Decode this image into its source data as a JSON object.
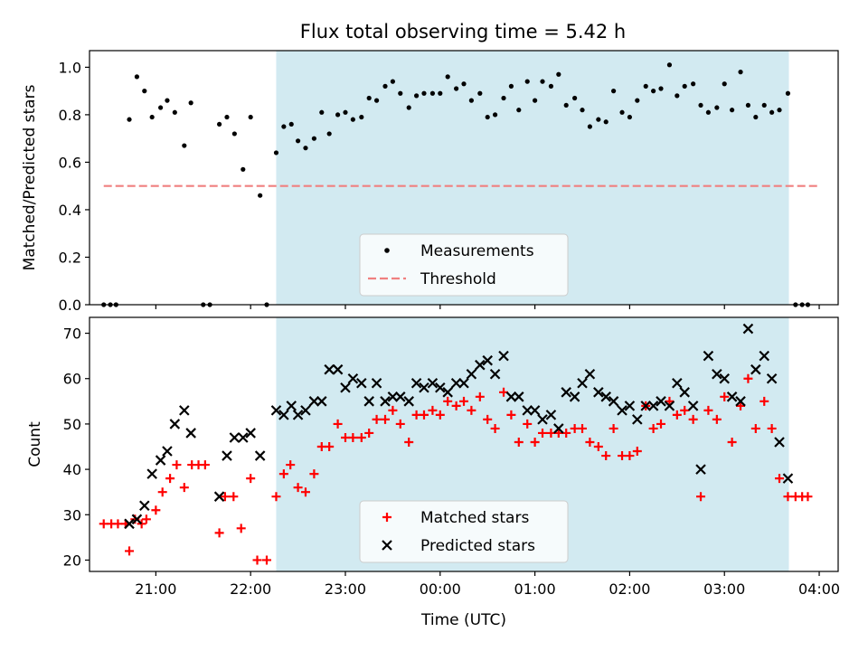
{
  "figure": {
    "title": "Flux total observing time = 5.42 h"
  },
  "chart_data": [
    {
      "type": "scatter",
      "ylabel": "Matched/Predicted stars",
      "xlim_hours": [
        20.3,
        28.2
      ],
      "ylim": [
        0,
        1.07
      ],
      "yticks": [
        0.0,
        0.2,
        0.4,
        0.6,
        0.8,
        1.0
      ],
      "ytick_labels": [
        "0.0",
        "0.2",
        "0.4",
        "0.6",
        "0.8",
        "1.0"
      ],
      "shaded_span_hours": [
        22.27,
        27.68
      ],
      "shade_color": "#add8e6",
      "legend_position": "lower center",
      "threshold": {
        "name": "Threshold",
        "y": 0.5,
        "x_range_hours": [
          20.45,
          28.0
        ],
        "color": "#f08080"
      },
      "series": [
        {
          "name": "Measurements",
          "color": "#000000",
          "points": [
            [
              20.45,
              0.0
            ],
            [
              20.52,
              0.0
            ],
            [
              20.58,
              0.0
            ],
            [
              20.72,
              0.78
            ],
            [
              20.8,
              0.96
            ],
            [
              20.88,
              0.9
            ],
            [
              20.96,
              0.79
            ],
            [
              21.05,
              0.83
            ],
            [
              21.12,
              0.86
            ],
            [
              21.2,
              0.81
            ],
            [
              21.3,
              0.67
            ],
            [
              21.37,
              0.85
            ],
            [
              21.5,
              0.0
            ],
            [
              21.57,
              0.0
            ],
            [
              21.67,
              0.76
            ],
            [
              21.75,
              0.79
            ],
            [
              21.83,
              0.72
            ],
            [
              21.92,
              0.57
            ],
            [
              22.0,
              0.79
            ],
            [
              22.1,
              0.46
            ],
            [
              22.17,
              0.0
            ],
            [
              22.27,
              0.64
            ],
            [
              22.35,
              0.75
            ],
            [
              22.43,
              0.76
            ],
            [
              22.5,
              0.69
            ],
            [
              22.58,
              0.66
            ],
            [
              22.67,
              0.7
            ],
            [
              22.75,
              0.81
            ],
            [
              22.83,
              0.72
            ],
            [
              22.92,
              0.8
            ],
            [
              23.0,
              0.81
            ],
            [
              23.08,
              0.78
            ],
            [
              23.17,
              0.79
            ],
            [
              23.25,
              0.87
            ],
            [
              23.33,
              0.86
            ],
            [
              23.42,
              0.92
            ],
            [
              23.5,
              0.94
            ],
            [
              23.58,
              0.89
            ],
            [
              23.67,
              0.83
            ],
            [
              23.75,
              0.88
            ],
            [
              23.83,
              0.89
            ],
            [
              23.92,
              0.89
            ],
            [
              24.0,
              0.89
            ],
            [
              24.08,
              0.96
            ],
            [
              24.17,
              0.91
            ],
            [
              24.25,
              0.93
            ],
            [
              24.33,
              0.86
            ],
            [
              24.42,
              0.89
            ],
            [
              24.5,
              0.79
            ],
            [
              24.58,
              0.8
            ],
            [
              24.67,
              0.87
            ],
            [
              24.75,
              0.92
            ],
            [
              24.83,
              0.82
            ],
            [
              24.92,
              0.94
            ],
            [
              25.0,
              0.86
            ],
            [
              25.08,
              0.94
            ],
            [
              25.17,
              0.92
            ],
            [
              25.25,
              0.97
            ],
            [
              25.33,
              0.84
            ],
            [
              25.42,
              0.87
            ],
            [
              25.5,
              0.82
            ],
            [
              25.58,
              0.75
            ],
            [
              25.67,
              0.78
            ],
            [
              25.75,
              0.77
            ],
            [
              25.83,
              0.9
            ],
            [
              25.92,
              0.81
            ],
            [
              26.0,
              0.79
            ],
            [
              26.08,
              0.86
            ],
            [
              26.17,
              0.92
            ],
            [
              26.25,
              0.9
            ],
            [
              26.33,
              0.91
            ],
            [
              26.42,
              1.01
            ],
            [
              26.5,
              0.88
            ],
            [
              26.58,
              0.92
            ],
            [
              26.67,
              0.93
            ],
            [
              26.75,
              0.84
            ],
            [
              26.83,
              0.81
            ],
            [
              26.92,
              0.83
            ],
            [
              27.0,
              0.93
            ],
            [
              27.08,
              0.82
            ],
            [
              27.17,
              0.98
            ],
            [
              27.25,
              0.84
            ],
            [
              27.33,
              0.79
            ],
            [
              27.42,
              0.84
            ],
            [
              27.5,
              0.81
            ],
            [
              27.58,
              0.82
            ],
            [
              27.67,
              0.89
            ],
            [
              27.75,
              0.0
            ],
            [
              27.82,
              0.0
            ],
            [
              27.88,
              0.0
            ]
          ]
        }
      ]
    },
    {
      "type": "scatter",
      "ylabel": "Count",
      "xlabel": "Time (UTC)",
      "xlim_hours": [
        20.3,
        28.2
      ],
      "ylim": [
        17.5,
        73.5
      ],
      "yticks": [
        20,
        30,
        40,
        50,
        60,
        70
      ],
      "ytick_labels": [
        "20",
        "30",
        "40",
        "50",
        "60",
        "70"
      ],
      "xticks_hours": [
        21,
        22,
        23,
        24,
        25,
        26,
        27,
        28
      ],
      "xtick_labels": [
        "21:00",
        "22:00",
        "23:00",
        "00:00",
        "01:00",
        "02:00",
        "03:00",
        "04:00"
      ],
      "shaded_span_hours": [
        22.27,
        27.68
      ],
      "shade_color": "#add8e6",
      "legend_position": "lower center",
      "series": [
        {
          "name": "Matched stars",
          "marker": "plus",
          "color": "#ff0000",
          "points": [
            [
              20.45,
              28
            ],
            [
              20.53,
              28
            ],
            [
              20.6,
              28
            ],
            [
              20.68,
              28
            ],
            [
              20.72,
              22
            ],
            [
              20.78,
              29
            ],
            [
              20.85,
              28
            ],
            [
              20.9,
              29
            ],
            [
              21.0,
              31
            ],
            [
              21.07,
              35
            ],
            [
              21.15,
              38
            ],
            [
              21.22,
              41
            ],
            [
              21.3,
              36
            ],
            [
              21.38,
              41
            ],
            [
              21.45,
              41
            ],
            [
              21.52,
              41
            ],
            [
              21.67,
              26
            ],
            [
              21.73,
              34
            ],
            [
              21.82,
              34
            ],
            [
              21.9,
              27
            ],
            [
              22.0,
              38
            ],
            [
              22.07,
              20
            ],
            [
              22.17,
              20
            ],
            [
              22.27,
              34
            ],
            [
              22.35,
              39
            ],
            [
              22.42,
              41
            ],
            [
              22.5,
              36
            ],
            [
              22.58,
              35
            ],
            [
              22.67,
              39
            ],
            [
              22.75,
              45
            ],
            [
              22.83,
              45
            ],
            [
              22.92,
              50
            ],
            [
              23.0,
              47
            ],
            [
              23.08,
              47
            ],
            [
              23.17,
              47
            ],
            [
              23.25,
              48
            ],
            [
              23.33,
              51
            ],
            [
              23.42,
              51
            ],
            [
              23.5,
              53
            ],
            [
              23.58,
              50
            ],
            [
              23.67,
              46
            ],
            [
              23.75,
              52
            ],
            [
              23.83,
              52
            ],
            [
              23.92,
              53
            ],
            [
              24.0,
              52
            ],
            [
              24.08,
              55
            ],
            [
              24.17,
              54
            ],
            [
              24.25,
              55
            ],
            [
              24.33,
              53
            ],
            [
              24.42,
              56
            ],
            [
              24.5,
              51
            ],
            [
              24.58,
              49
            ],
            [
              24.67,
              57
            ],
            [
              24.75,
              52
            ],
            [
              24.83,
              46
            ],
            [
              24.92,
              50
            ],
            [
              25.0,
              46
            ],
            [
              25.08,
              48
            ],
            [
              25.17,
              48
            ],
            [
              25.25,
              48
            ],
            [
              25.33,
              48
            ],
            [
              25.42,
              49
            ],
            [
              25.5,
              49
            ],
            [
              25.58,
              46
            ],
            [
              25.67,
              45
            ],
            [
              25.75,
              43
            ],
            [
              25.83,
              49
            ],
            [
              25.92,
              43
            ],
            [
              26.0,
              43
            ],
            [
              26.08,
              44
            ],
            [
              26.17,
              54
            ],
            [
              26.25,
              49
            ],
            [
              26.33,
              50
            ],
            [
              26.42,
              55
            ],
            [
              26.5,
              52
            ],
            [
              26.58,
              53
            ],
            [
              26.67,
              51
            ],
            [
              26.75,
              34
            ],
            [
              26.83,
              53
            ],
            [
              26.92,
              51
            ],
            [
              27.0,
              56
            ],
            [
              27.08,
              46
            ],
            [
              27.17,
              54
            ],
            [
              27.25,
              60
            ],
            [
              27.33,
              49
            ],
            [
              27.42,
              55
            ],
            [
              27.5,
              49
            ],
            [
              27.58,
              38
            ],
            [
              27.67,
              34
            ],
            [
              27.75,
              34
            ],
            [
              27.82,
              34
            ],
            [
              27.88,
              34
            ]
          ]
        },
        {
          "name": "Predicted stars",
          "marker": "x",
          "color": "#000000",
          "points": [
            [
              20.72,
              28
            ],
            [
              20.8,
              29
            ],
            [
              20.88,
              32
            ],
            [
              20.96,
              39
            ],
            [
              21.05,
              42
            ],
            [
              21.12,
              44
            ],
            [
              21.2,
              50
            ],
            [
              21.3,
              53
            ],
            [
              21.37,
              48
            ],
            [
              21.67,
              34
            ],
            [
              21.75,
              43
            ],
            [
              21.83,
              47
            ],
            [
              21.92,
              47
            ],
            [
              22.0,
              48
            ],
            [
              22.1,
              43
            ],
            [
              22.27,
              53
            ],
            [
              22.35,
              52
            ],
            [
              22.43,
              54
            ],
            [
              22.5,
              52
            ],
            [
              22.58,
              53
            ],
            [
              22.67,
              55
            ],
            [
              22.75,
              55
            ],
            [
              22.83,
              62
            ],
            [
              22.92,
              62
            ],
            [
              23.0,
              58
            ],
            [
              23.08,
              60
            ],
            [
              23.17,
              59
            ],
            [
              23.25,
              55
            ],
            [
              23.33,
              59
            ],
            [
              23.42,
              55
            ],
            [
              23.5,
              56
            ],
            [
              23.58,
              56
            ],
            [
              23.67,
              55
            ],
            [
              23.75,
              59
            ],
            [
              23.83,
              58
            ],
            [
              23.92,
              59
            ],
            [
              24.0,
              58
            ],
            [
              24.08,
              57
            ],
            [
              24.17,
              59
            ],
            [
              24.25,
              59
            ],
            [
              24.33,
              61
            ],
            [
              24.42,
              63
            ],
            [
              24.5,
              64
            ],
            [
              24.58,
              61
            ],
            [
              24.67,
              65
            ],
            [
              24.75,
              56
            ],
            [
              24.83,
              56
            ],
            [
              24.92,
              53
            ],
            [
              25.0,
              53
            ],
            [
              25.08,
              51
            ],
            [
              25.17,
              52
            ],
            [
              25.25,
              49
            ],
            [
              25.33,
              57
            ],
            [
              25.42,
              56
            ],
            [
              25.5,
              59
            ],
            [
              25.58,
              61
            ],
            [
              25.67,
              57
            ],
            [
              25.75,
              56
            ],
            [
              25.83,
              55
            ],
            [
              25.92,
              53
            ],
            [
              26.0,
              54
            ],
            [
              26.08,
              51
            ],
            [
              26.17,
              54
            ],
            [
              26.25,
              54
            ],
            [
              26.33,
              55
            ],
            [
              26.42,
              54
            ],
            [
              26.5,
              59
            ],
            [
              26.58,
              57
            ],
            [
              26.67,
              54
            ],
            [
              26.75,
              40
            ],
            [
              26.83,
              65
            ],
            [
              26.92,
              61
            ],
            [
              27.0,
              60
            ],
            [
              27.08,
              56
            ],
            [
              27.17,
              55
            ],
            [
              27.25,
              71
            ],
            [
              27.33,
              62
            ],
            [
              27.42,
              65
            ],
            [
              27.5,
              60
            ],
            [
              27.58,
              46
            ],
            [
              27.67,
              38
            ]
          ]
        }
      ]
    }
  ]
}
